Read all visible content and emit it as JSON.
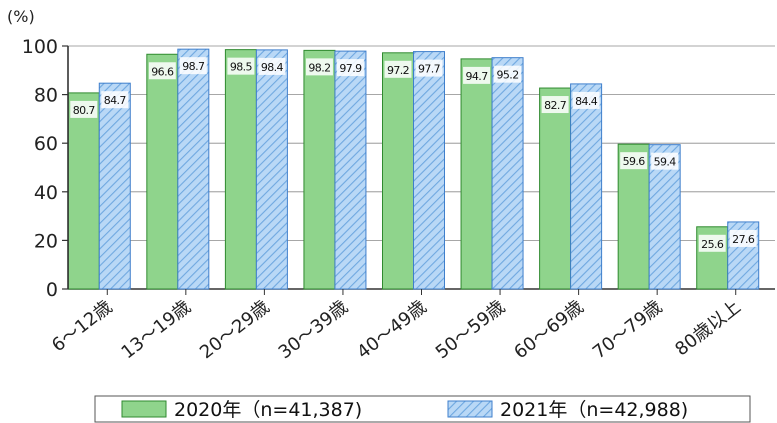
{
  "chart_data": {
    "type": "bar",
    "y_unit": "(%)",
    "ylim": [
      0,
      100
    ],
    "yticks": [
      "0",
      "20",
      "40",
      "60",
      "80",
      "100"
    ],
    "grid": true,
    "categories": [
      "6～12歳",
      "13～19歳",
      "20～29歳",
      "30～39歳",
      "40～49歳",
      "50～59歳",
      "60～69歳",
      "70～79歳",
      "80歳以上"
    ],
    "series": [
      {
        "name": "2020年（n=41,387)",
        "color": "#8fd48c",
        "pattern": "solid",
        "values": [
          80.7,
          96.6,
          98.5,
          98.2,
          97.2,
          94.7,
          82.7,
          59.6,
          25.6
        ],
        "labels": [
          "80.7",
          "96.6",
          "98.5",
          "98.2",
          "97.2",
          "94.7",
          "82.7",
          "59.6",
          "25.6"
        ]
      },
      {
        "name": "2021年（n=42,988)",
        "color": "#a9cdf2",
        "pattern": "hatched",
        "values": [
          84.7,
          98.7,
          98.4,
          97.9,
          97.7,
          95.2,
          84.4,
          59.4,
          27.6
        ],
        "labels": [
          "84.7",
          "98.7",
          "98.4",
          "97.9",
          "97.7",
          "95.2",
          "84.4",
          "59.4",
          "27.6"
        ]
      }
    ],
    "legend_position": "bottom"
  }
}
